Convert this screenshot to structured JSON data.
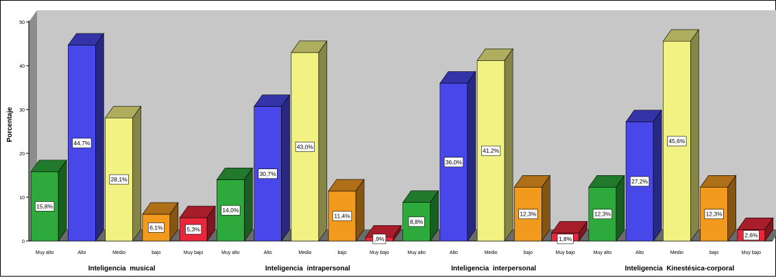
{
  "chart_data": {
    "type": "bar",
    "ylabel": "Porcentaje",
    "ylim": [
      0,
      50
    ],
    "yticks": [
      0,
      10,
      20,
      30,
      40,
      50
    ],
    "grid": false,
    "legend": "none",
    "categories": [
      "Muy alto",
      "Alto",
      "Medio",
      "bajo",
      "Muy bajo"
    ],
    "category_colors": [
      "#2eaa3c",
      "#4848ea",
      "#f2f283",
      "#f29a1e",
      "#e8283a"
    ],
    "groups": [
      {
        "name": "Inteligencia  musical",
        "values": [
          15.8,
          44.7,
          28.1,
          6.1,
          5.3
        ],
        "labels": [
          "15,8%",
          "44,7%",
          "28,1%",
          "6,1%",
          "5,3%"
        ]
      },
      {
        "name": "Inteligencia  intrapersonal",
        "values": [
          14.0,
          30.7,
          43.0,
          11.4,
          0.9
        ],
        "labels": [
          "14,0%",
          "30,7%",
          "43,0%",
          "11,4%",
          ",9%"
        ]
      },
      {
        "name": "Inteligencia  interpersonal",
        "values": [
          8.8,
          36.0,
          41.2,
          12.3,
          1.8
        ],
        "labels": [
          "8,8%",
          "36,0%",
          "41,2%",
          "12,3%",
          "1,8%"
        ]
      },
      {
        "name": "Inteligencia  Kinestésica-corporal",
        "values": [
          12.3,
          27.2,
          45.6,
          12.3,
          2.6
        ],
        "labels": [
          "12,3%",
          "27,2%",
          "45,6%",
          "12,3%",
          "2,6%"
        ]
      }
    ]
  }
}
